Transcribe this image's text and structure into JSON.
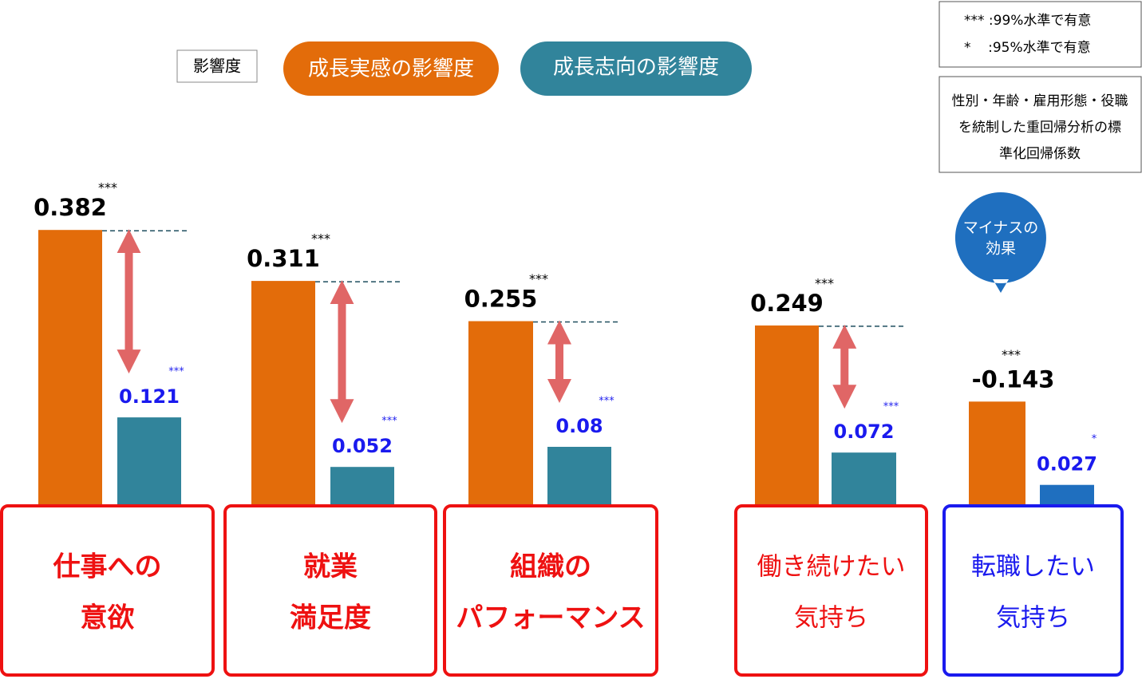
{
  "chart_data": {
    "type": "bar",
    "legend_title": "影響度",
    "categories": [
      [
        "仕事への",
        "意欲"
      ],
      [
        "就業",
        "満足度"
      ],
      [
        "組織の",
        "パフォーマンス"
      ],
      [
        "働き続けたい",
        "気持ち"
      ],
      [
        "転職したい",
        "気持ち"
      ]
    ],
    "category_colors": [
      "#ee1111",
      "#ee1111",
      "#ee1111",
      "#ee1111",
      "#1a1aee"
    ],
    "series": [
      {
        "name": "成長実感の影響度",
        "color": "#e36c0a",
        "values": [
          0.382,
          0.311,
          0.255,
          0.249,
          -0.143
        ],
        "significance": [
          "***",
          "***",
          "***",
          "***",
          "***"
        ]
      },
      {
        "name": "成長志向の影響度",
        "color": "#31849b",
        "values": [
          0.121,
          0.052,
          0.08,
          0.072,
          0.027
        ],
        "significance": [
          "***",
          "***",
          "***",
          "***",
          "*"
        ]
      }
    ],
    "notes": [
      "***  :99%水準で有意",
      "*    :95%水準で有意"
    ],
    "method_note": [
      "性別・年齢・雇用形態・役職",
      "を統制した重回帰分析の標",
      "準化回帰係数"
    ],
    "callout": [
      "マイナスの",
      "効果"
    ]
  }
}
